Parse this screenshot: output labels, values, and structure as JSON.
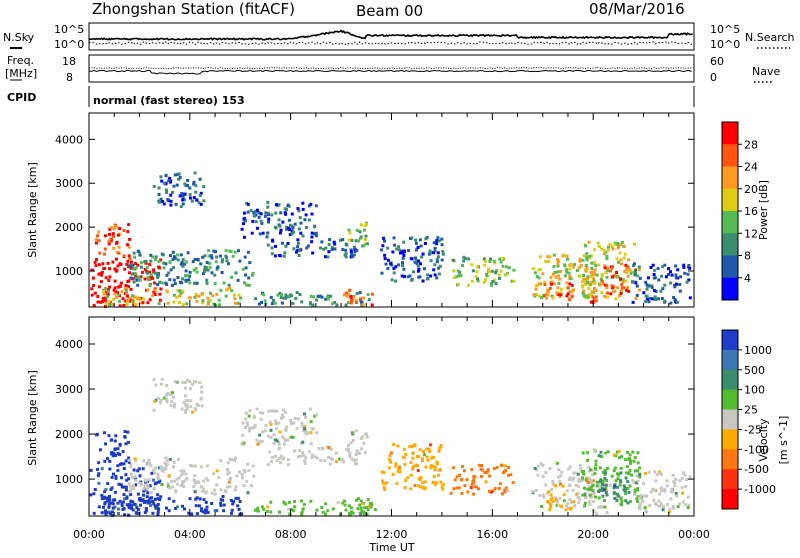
{
  "header": {
    "station": "Zhongshan Station (fitACF)",
    "beam": "Beam 00",
    "date": "08/Mar/2016"
  },
  "top_panels": {
    "nsky_label": "N.Sky",
    "nsearch_label": "N.Search",
    "nsky_ticks": [
      "10^5",
      "10^0"
    ],
    "nsearch_ticks": [
      "10^5",
      "10^0"
    ],
    "freq_label_1": "Freq.",
    "freq_label_2": "[MHz]",
    "freq_ticks": [
      "18",
      "8"
    ],
    "nave_label": "Nave",
    "nave_ticks": [
      "60",
      "0"
    ],
    "cpid_label": "CPID",
    "cpid_value": "normal (fast stereo) 153"
  },
  "chart_data": [
    {
      "type": "heatmap",
      "name": "power-panel",
      "ylabel": "Slant Range [km]",
      "yticks": [
        1000,
        2000,
        3000,
        4000
      ],
      "ylim": [
        180,
        4600
      ],
      "colorbar_label": "Power [dB]",
      "colorbar_ticks": [
        "4",
        "8",
        "12",
        "16",
        "20",
        "24",
        "28"
      ],
      "colorbar_colors": [
        "#0000ff",
        "#1e5aa8",
        "#3c8c6e",
        "#55bb55",
        "#ddcc11",
        "#ff9922",
        "#ff5511",
        "#ff0000"
      ]
    },
    {
      "type": "heatmap",
      "name": "velocity-panel",
      "ylabel": "Slant Range [km]",
      "yticks": [
        1000,
        2000,
        3000,
        4000
      ],
      "ylim": [
        180,
        4600
      ],
      "colorbar_label": "Velocity",
      "colorbar_unit": "[m s^-1]",
      "colorbar_ticks": [
        "1000",
        "500",
        "100",
        "25",
        "-25",
        "-100",
        "-500",
        "-1000"
      ],
      "colorbar_colors": [
        "#1e3cc8",
        "#3c78b4",
        "#3c8c6e",
        "#55bb33",
        "#c8c8c0",
        "#ffaa00",
        "#ff7711",
        "#ff3311",
        "#ff0000"
      ]
    }
  ],
  "xaxis": {
    "label": "Time UT",
    "ticks": [
      "00:00",
      "04:00",
      "08:00",
      "12:00",
      "16:00",
      "20:00",
      "00:00"
    ]
  },
  "echo_regions": [
    {
      "t0": 0.0,
      "t1": 2.8,
      "r0": 200,
      "r1": 1300,
      "pw": 8,
      "vel": 0
    },
    {
      "t0": 0.2,
      "t1": 1.6,
      "r0": 1300,
      "r1": 2100,
      "pw": 6,
      "vel": -2
    },
    {
      "t0": 1.5,
      "t1": 6.5,
      "r0": 700,
      "r1": 1500,
      "pw": 2,
      "vel": 4
    },
    {
      "t0": 0.5,
      "t1": 6.0,
      "r0": 250,
      "r1": 650,
      "pw": 4,
      "vel": 0
    },
    {
      "t0": 7.0,
      "t1": 10.6,
      "r0": 1350,
      "r1": 1750,
      "pw": 1,
      "vel": 4
    },
    {
      "t0": 10.2,
      "t1": 11.0,
      "r0": 1600,
      "r1": 2150,
      "pw": 3,
      "vel": 4
    },
    {
      "t0": 6.5,
      "t1": 11.2,
      "r0": 250,
      "r1": 550,
      "pw": 2,
      "vel": 3
    },
    {
      "t0": 10.0,
      "t1": 11.3,
      "r0": 250,
      "r1": 600,
      "pw": 6,
      "vel": 3
    },
    {
      "t0": 14.3,
      "t1": 16.8,
      "r0": 700,
      "r1": 1350,
      "pw": 3,
      "vel": 6
    },
    {
      "t0": 17.5,
      "t1": 20.0,
      "r0": 400,
      "r1": 1400,
      "pw": 4,
      "vel": 4
    },
    {
      "t0": 18.0,
      "t1": 19.2,
      "r0": 350,
      "r1": 800,
      "pw": 6,
      "vel": 5
    },
    {
      "t0": 19.5,
      "t1": 21.8,
      "r0": 400,
      "r1": 1700,
      "pw": 4,
      "vel": 3
    },
    {
      "t0": 20.2,
      "t1": 21.4,
      "r0": 500,
      "r1": 1200,
      "pw": 6,
      "vel": 2
    },
    {
      "t0": 19.8,
      "t1": 20.5,
      "r0": 200,
      "r1": 450,
      "pw": 7,
      "vel": 4
    },
    {
      "t0": 2.5,
      "t1": 4.5,
      "r0": 2500,
      "r1": 3300,
      "pw": 1,
      "vel": 4
    },
    {
      "t0": 11.5,
      "t1": 14.0,
      "r0": 800,
      "r1": 1800,
      "pw": 1,
      "vel": 5
    },
    {
      "t0": 21.5,
      "t1": 23.8,
      "r0": 300,
      "r1": 1200,
      "pw": 1,
      "vel": 4
    },
    {
      "t0": 6.0,
      "t1": 9.0,
      "r0": 1800,
      "r1": 2600,
      "pw": 1,
      "vel": 4
    }
  ]
}
